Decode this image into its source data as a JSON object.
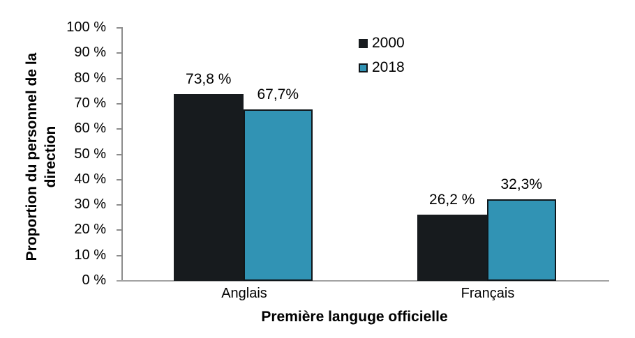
{
  "chart_data": {
    "type": "bar",
    "title": "",
    "categories": [
      "Anglais",
      "Français"
    ],
    "series": [
      {
        "name": "2000",
        "color": "#171b1e",
        "values": [
          73.8,
          26.2
        ],
        "data_labels": [
          "73,8 %",
          "26,2 %"
        ]
      },
      {
        "name": "2018",
        "color": "#3193b4",
        "border_color": "#10161a",
        "values": [
          67.7,
          32.3
        ],
        "data_labels": [
          "67,7%",
          "32,3%"
        ]
      }
    ],
    "xlabel": "Première languge officielle",
    "ylabel": "Proportion du personnel de la direction",
    "ylabel_lines": [
      "Proportion du personnel de la",
      "direction"
    ],
    "y_ticks": [
      "100 %",
      "90 %",
      "80 %",
      "70 %",
      "60 %",
      "50 %",
      "40 %",
      "30 %",
      "20 %",
      "10 %",
      "0 %"
    ],
    "ylim": [
      0,
      100
    ],
    "grid": false,
    "legend_position": "top-center",
    "axis_color": "#8c8c8c"
  }
}
